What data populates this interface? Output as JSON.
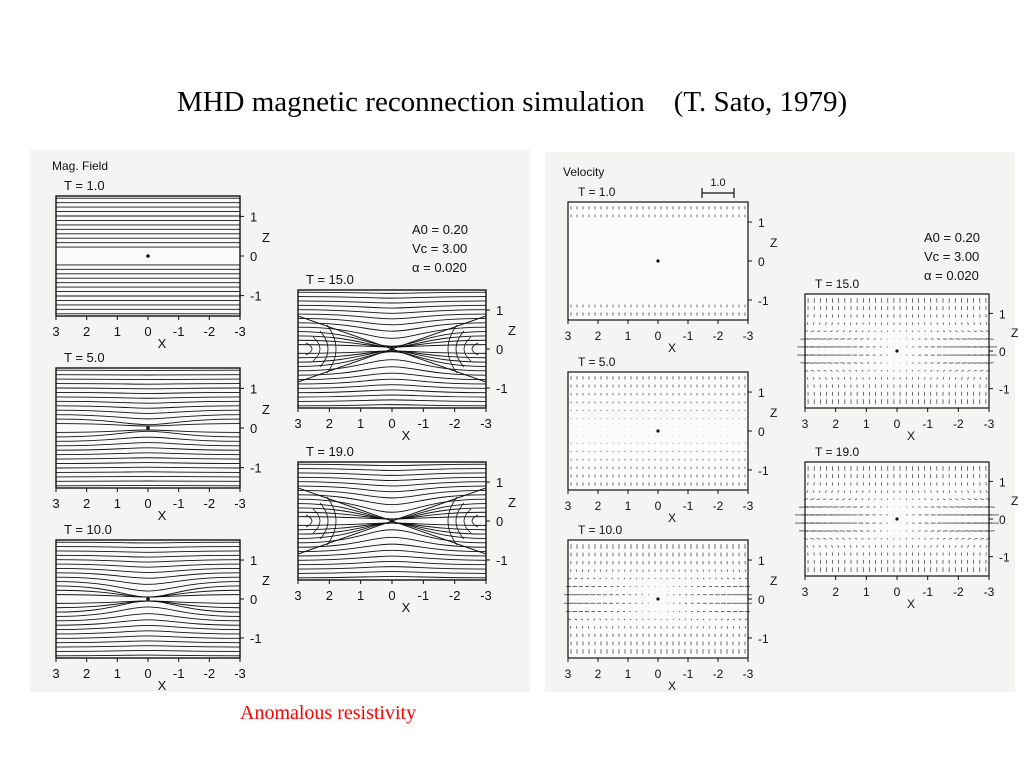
{
  "title": "MHD magnetic reconnection simulation    (T. Sato, 1979)",
  "caption": "Anomalous resistivity",
  "colors": {
    "caption": "#ff0000",
    "ink": "#111111",
    "paper": "#f4f4f2"
  },
  "left_figure": {
    "heading": "Mag. Field",
    "params": [
      "A0 = 0.20",
      "Vc = 3.00",
      "α = 0.020"
    ],
    "panels": [
      {
        "label": "T = 1.0",
        "stage": "uniform"
      },
      {
        "label": "T = 5.0",
        "stage": "early"
      },
      {
        "label": "T = 10.0",
        "stage": "pinch"
      },
      {
        "label": "T = 15.0",
        "stage": "x-point"
      },
      {
        "label": "T = 19.0",
        "stage": "x-point-strong"
      }
    ],
    "x_ticks": [
      "3",
      "2",
      "1",
      "0",
      "-1",
      "-2",
      "-3"
    ],
    "x_label": "X",
    "z_ticks": [
      "1",
      "0",
      "-1"
    ],
    "z_label": "Z"
  },
  "right_figure": {
    "heading": "Velocity",
    "scale_label": "1.0",
    "params": [
      "A0 = 0.20",
      "Vc = 3.00",
      "α = 0.020"
    ],
    "panels": [
      {
        "label": "T = 1.0",
        "stage": "uniform"
      },
      {
        "label": "T = 5.0",
        "stage": "early"
      },
      {
        "label": "T = 10.0",
        "stage": "pinch"
      },
      {
        "label": "T = 15.0",
        "stage": "x-point"
      },
      {
        "label": "T = 19.0",
        "stage": "x-point-strong"
      }
    ],
    "x_ticks": [
      "3",
      "2",
      "1",
      "0",
      "-1",
      "-2",
      "-3"
    ],
    "x_label": "X",
    "z_ticks": [
      "1",
      "0",
      "-1"
    ],
    "z_label": "Z"
  }
}
